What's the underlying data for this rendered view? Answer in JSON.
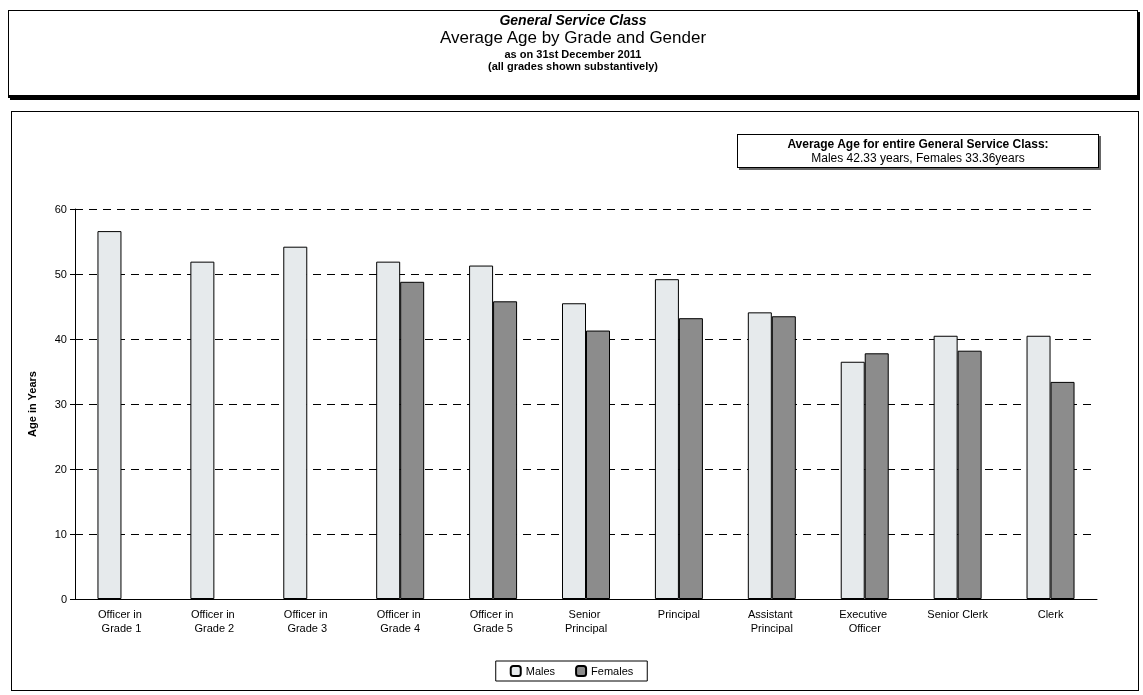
{
  "chart_data": {
    "type": "bar",
    "title": "General Service Class",
    "subtitle": "Average Age by Grade and Gender",
    "annotations": [
      "as on 31st December 2011",
      "(all grades shown substantively)",
      "Average Age for entire General Service Class:",
      "Males 42.33 years, Females 33.36years"
    ],
    "ylabel": "Age in Years",
    "categories": [
      "Officer in Grade 1",
      "Officer in Grade 2",
      "Officer in Grade 3",
      "Officer in Grade 4",
      "Officer in Grade 5",
      "Senior Principal",
      "Principal",
      "Assistant Principal",
      "Executive Officer",
      "Senior Clerk",
      "Clerk"
    ],
    "series": [
      {
        "name": "Males",
        "color": "#e6eaec",
        "values": [
          56.6,
          51.9,
          54.2,
          51.9,
          51.3,
          45.5,
          49.2,
          44.1,
          36.5,
          40.5,
          40.5
        ]
      },
      {
        "name": "Females",
        "color": "#8c8c8c",
        "values": [
          null,
          null,
          null,
          48.8,
          45.8,
          41.3,
          43.2,
          43.5,
          37.8,
          38.2,
          33.4
        ]
      }
    ],
    "ylim": [
      0,
      60
    ],
    "yticks": [
      0,
      10,
      20,
      30,
      40,
      50,
      60
    ],
    "grid": "y",
    "legend": "bottom"
  }
}
